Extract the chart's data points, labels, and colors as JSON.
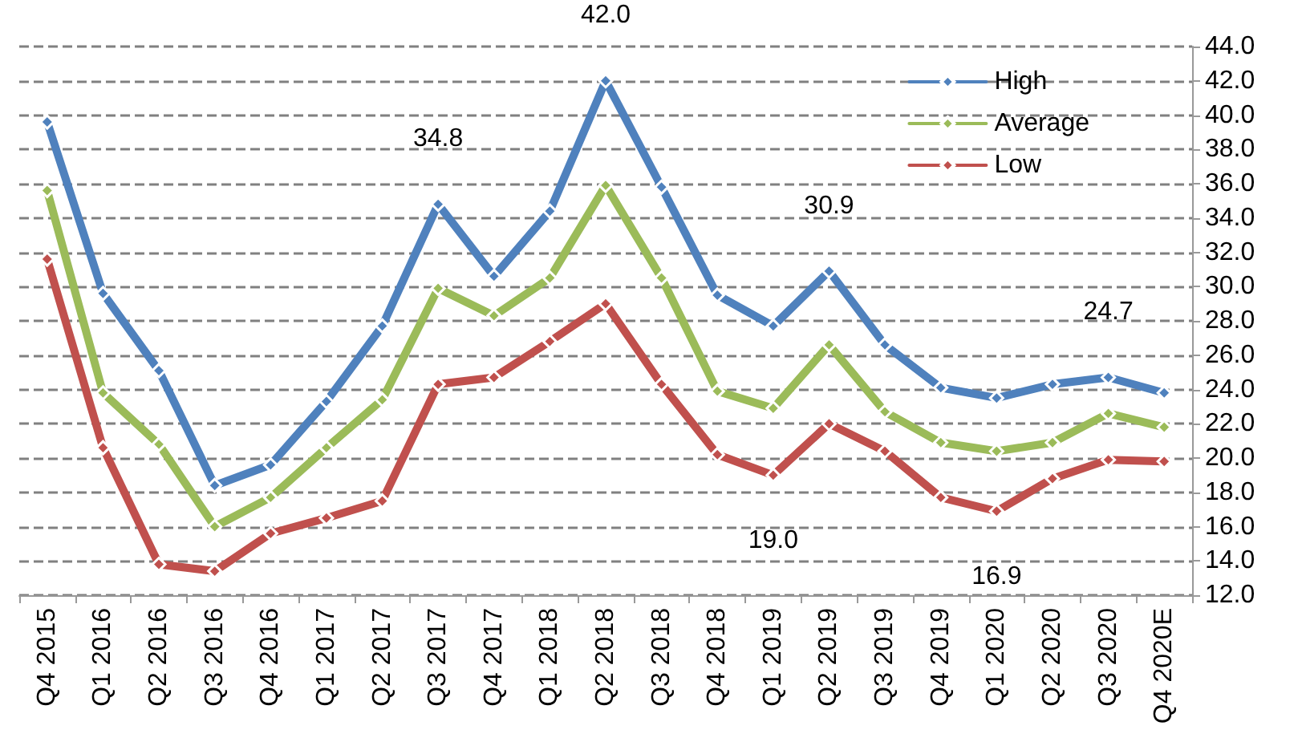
{
  "chart_data": {
    "type": "line",
    "categories": [
      "Q4 2015",
      "Q1 2016",
      "Q2 2016",
      "Q3 2016",
      "Q4 2016",
      "Q1 2017",
      "Q2 2017",
      "Q3 2017",
      "Q4 2017",
      "Q1 2018",
      "Q2 2018",
      "Q3 2018",
      "Q4 2018",
      "Q1 2019",
      "Q2 2019",
      "Q3 2019",
      "Q4 2019",
      "Q1 2020",
      "Q2 2020",
      "Q3 2020",
      "Q4 2020E"
    ],
    "series": [
      {
        "name": "High",
        "color": "#4f81bd",
        "values": [
          39.6,
          29.6,
          25.1,
          18.4,
          19.6,
          23.3,
          27.7,
          34.8,
          30.6,
          34.4,
          42.0,
          35.8,
          29.5,
          27.7,
          30.9,
          26.6,
          24.1,
          23.5,
          24.3,
          24.7,
          23.8
        ],
        "value_labels": [
          null,
          null,
          null,
          null,
          null,
          null,
          null,
          "34.8",
          null,
          null,
          "42.0",
          null,
          null,
          null,
          "30.9",
          null,
          null,
          null,
          null,
          "24.7",
          null
        ]
      },
      {
        "name": "Average",
        "color": "#9bbb59",
        "values": [
          35.6,
          23.8,
          20.8,
          16.0,
          17.7,
          20.6,
          23.4,
          29.9,
          28.3,
          30.5,
          35.9,
          30.5,
          23.9,
          22.9,
          26.6,
          22.7,
          20.9,
          20.4,
          20.9,
          22.6,
          21.8
        ]
      },
      {
        "name": "Low",
        "color": "#c0504d",
        "values": [
          31.6,
          20.6,
          13.8,
          13.4,
          15.6,
          16.5,
          17.5,
          24.3,
          24.7,
          26.8,
          29.0,
          24.3,
          20.2,
          19.0,
          22.0,
          20.4,
          17.7,
          16.9,
          18.8,
          19.9,
          19.8
        ],
        "value_labels": [
          null,
          null,
          null,
          null,
          null,
          null,
          null,
          null,
          null,
          null,
          null,
          null,
          null,
          "19.0",
          null,
          null,
          null,
          "16.9",
          null,
          null,
          null
        ]
      }
    ],
    "ylim": [
      12,
      44
    ],
    "yticks": [
      {
        "value": 12,
        "label": "12.0"
      },
      {
        "value": 14,
        "label": "14.0"
      },
      {
        "value": 16,
        "label": "16.0"
      },
      {
        "value": 18,
        "label": "18.0"
      },
      {
        "value": 20,
        "label": "20.0"
      },
      {
        "value": 22,
        "label": "22.0"
      },
      {
        "value": 24,
        "label": "24.0"
      },
      {
        "value": 26,
        "label": "26.0"
      },
      {
        "value": 28,
        "label": "28.0"
      },
      {
        "value": 30,
        "label": "30.0"
      },
      {
        "value": 32,
        "label": "32.0"
      },
      {
        "value": 34,
        "label": "34.0"
      },
      {
        "value": 36,
        "label": "36.0"
      },
      {
        "value": 38,
        "label": "38.0"
      },
      {
        "value": 40,
        "label": "40.0"
      },
      {
        "value": 42,
        "label": "42.0"
      },
      {
        "value": 44,
        "label": "44.0"
      }
    ],
    "grid": "y",
    "legend": "top right",
    "marker": "diamond",
    "line_style": "solid"
  }
}
